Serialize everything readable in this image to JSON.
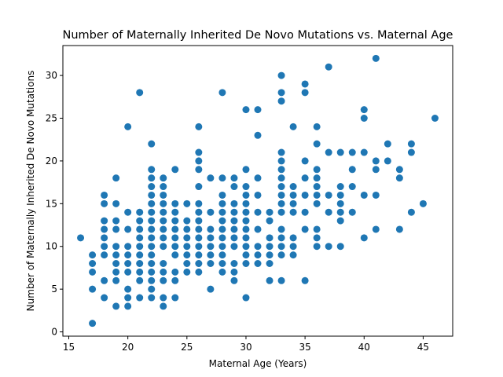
{
  "chart_data": {
    "type": "scatter",
    "title": "Number of Maternally Inherited De Novo Mutations vs. Maternal Age",
    "xlabel": "Maternal Age (Years)",
    "ylabel": "Number of Maternally Inherited De Novo Mutations",
    "xlim": [
      14.5,
      47.5
    ],
    "ylim": [
      -0.5,
      33.5
    ],
    "xticks": [
      15,
      20,
      25,
      30,
      35,
      40,
      45
    ],
    "yticks": [
      0,
      5,
      10,
      15,
      20,
      25,
      30
    ],
    "grid": false,
    "marker_color": "#1f77b4",
    "points": [
      [
        16,
        11
      ],
      [
        17,
        1
      ],
      [
        17,
        5
      ],
      [
        17,
        7
      ],
      [
        17,
        8
      ],
      [
        17,
        9
      ],
      [
        18,
        4
      ],
      [
        18,
        6
      ],
      [
        18,
        9
      ],
      [
        18,
        10
      ],
      [
        18,
        11
      ],
      [
        18,
        12
      ],
      [
        18,
        13
      ],
      [
        18,
        15
      ],
      [
        18,
        16
      ],
      [
        19,
        3
      ],
      [
        19,
        6
      ],
      [
        19,
        7
      ],
      [
        19,
        8
      ],
      [
        19,
        9
      ],
      [
        19,
        10
      ],
      [
        19,
        12
      ],
      [
        19,
        13
      ],
      [
        19,
        15
      ],
      [
        19,
        18
      ],
      [
        20,
        3
      ],
      [
        20,
        4
      ],
      [
        20,
        5
      ],
      [
        20,
        7
      ],
      [
        20,
        8
      ],
      [
        20,
        9
      ],
      [
        20,
        10
      ],
      [
        20,
        12
      ],
      [
        20,
        14
      ],
      [
        20,
        24
      ],
      [
        21,
        4
      ],
      [
        21,
        6
      ],
      [
        21,
        7
      ],
      [
        21,
        8
      ],
      [
        21,
        9
      ],
      [
        21,
        10
      ],
      [
        21,
        11
      ],
      [
        21,
        12
      ],
      [
        21,
        13
      ],
      [
        21,
        14
      ],
      [
        21,
        28
      ],
      [
        22,
        4
      ],
      [
        22,
        5
      ],
      [
        22,
        6
      ],
      [
        22,
        7
      ],
      [
        22,
        8
      ],
      [
        22,
        9
      ],
      [
        22,
        10
      ],
      [
        22,
        11
      ],
      [
        22,
        12
      ],
      [
        22,
        13
      ],
      [
        22,
        14
      ],
      [
        22,
        15
      ],
      [
        22,
        16
      ],
      [
        22,
        17
      ],
      [
        22,
        18
      ],
      [
        22,
        19
      ],
      [
        22,
        22
      ],
      [
        23,
        3
      ],
      [
        23,
        4
      ],
      [
        23,
        6
      ],
      [
        23,
        7
      ],
      [
        23,
        8
      ],
      [
        23,
        10
      ],
      [
        23,
        11
      ],
      [
        23,
        12
      ],
      [
        23,
        13
      ],
      [
        23,
        14
      ],
      [
        23,
        15
      ],
      [
        23,
        16
      ],
      [
        23,
        17
      ],
      [
        23,
        18
      ],
      [
        24,
        4
      ],
      [
        24,
        6
      ],
      [
        24,
        7
      ],
      [
        24,
        9
      ],
      [
        24,
        10
      ],
      [
        24,
        11
      ],
      [
        24,
        12
      ],
      [
        24,
        13
      ],
      [
        24,
        14
      ],
      [
        24,
        15
      ],
      [
        24,
        19
      ],
      [
        25,
        7
      ],
      [
        25,
        8
      ],
      [
        25,
        9
      ],
      [
        25,
        10
      ],
      [
        25,
        11
      ],
      [
        25,
        12
      ],
      [
        25,
        13
      ],
      [
        25,
        15
      ],
      [
        26,
        7
      ],
      [
        26,
        8
      ],
      [
        26,
        9
      ],
      [
        26,
        10
      ],
      [
        26,
        11
      ],
      [
        26,
        12
      ],
      [
        26,
        13
      ],
      [
        26,
        14
      ],
      [
        26,
        15
      ],
      [
        26,
        17
      ],
      [
        26,
        19
      ],
      [
        26,
        20
      ],
      [
        26,
        21
      ],
      [
        26,
        24
      ],
      [
        27,
        5
      ],
      [
        27,
        8
      ],
      [
        27,
        9
      ],
      [
        27,
        10
      ],
      [
        27,
        11
      ],
      [
        27,
        12
      ],
      [
        27,
        14
      ],
      [
        27,
        18
      ],
      [
        28,
        7
      ],
      [
        28,
        8
      ],
      [
        28,
        9
      ],
      [
        28,
        10
      ],
      [
        28,
        11
      ],
      [
        28,
        12
      ],
      [
        28,
        13
      ],
      [
        28,
        14
      ],
      [
        28,
        15
      ],
      [
        28,
        16
      ],
      [
        28,
        18
      ],
      [
        28,
        28
      ],
      [
        29,
        6
      ],
      [
        29,
        7
      ],
      [
        29,
        8
      ],
      [
        29,
        10
      ],
      [
        29,
        11
      ],
      [
        29,
        12
      ],
      [
        29,
        13
      ],
      [
        29,
        14
      ],
      [
        29,
        15
      ],
      [
        29,
        17
      ],
      [
        29,
        18
      ],
      [
        30,
        4
      ],
      [
        30,
        8
      ],
      [
        30,
        9
      ],
      [
        30,
        10
      ],
      [
        30,
        11
      ],
      [
        30,
        12
      ],
      [
        30,
        13
      ],
      [
        30,
        14
      ],
      [
        30,
        15
      ],
      [
        30,
        16
      ],
      [
        30,
        17
      ],
      [
        30,
        19
      ],
      [
        30,
        26
      ],
      [
        31,
        8
      ],
      [
        31,
        9
      ],
      [
        31,
        10
      ],
      [
        31,
        12
      ],
      [
        31,
        14
      ],
      [
        31,
        16
      ],
      [
        31,
        18
      ],
      [
        31,
        23
      ],
      [
        31,
        26
      ],
      [
        32,
        6
      ],
      [
        32,
        8
      ],
      [
        32,
        9
      ],
      [
        32,
        10
      ],
      [
        32,
        11
      ],
      [
        32,
        13
      ],
      [
        32,
        14
      ],
      [
        33,
        6
      ],
      [
        33,
        9
      ],
      [
        33,
        10
      ],
      [
        33,
        11
      ],
      [
        33,
        12
      ],
      [
        33,
        14
      ],
      [
        33,
        15
      ],
      [
        33,
        16
      ],
      [
        33,
        17
      ],
      [
        33,
        18
      ],
      [
        33,
        19
      ],
      [
        33,
        20
      ],
      [
        33,
        21
      ],
      [
        33,
        27
      ],
      [
        33,
        28
      ],
      [
        33,
        30
      ],
      [
        34,
        9
      ],
      [
        34,
        10
      ],
      [
        34,
        11
      ],
      [
        34,
        14
      ],
      [
        34,
        15
      ],
      [
        34,
        16
      ],
      [
        34,
        17
      ],
      [
        34,
        24
      ],
      [
        35,
        6
      ],
      [
        35,
        12
      ],
      [
        35,
        14
      ],
      [
        35,
        16
      ],
      [
        35,
        18
      ],
      [
        35,
        20
      ],
      [
        35,
        28
      ],
      [
        35,
        29
      ],
      [
        36,
        10
      ],
      [
        36,
        11
      ],
      [
        36,
        12
      ],
      [
        36,
        15
      ],
      [
        36,
        16
      ],
      [
        36,
        17
      ],
      [
        36,
        18
      ],
      [
        36,
        19
      ],
      [
        36,
        22
      ],
      [
        36,
        24
      ],
      [
        37,
        10
      ],
      [
        37,
        14
      ],
      [
        37,
        16
      ],
      [
        37,
        21
      ],
      [
        37,
        31
      ],
      [
        38,
        10
      ],
      [
        38,
        13
      ],
      [
        38,
        14
      ],
      [
        38,
        15
      ],
      [
        38,
        16
      ],
      [
        38,
        17
      ],
      [
        38,
        21
      ],
      [
        39,
        14
      ],
      [
        39,
        17
      ],
      [
        39,
        19
      ],
      [
        39,
        21
      ],
      [
        40,
        11
      ],
      [
        40,
        16
      ],
      [
        40,
        21
      ],
      [
        40,
        25
      ],
      [
        40,
        26
      ],
      [
        41,
        12
      ],
      [
        41,
        16
      ],
      [
        41,
        19
      ],
      [
        41,
        20
      ],
      [
        41,
        32
      ],
      [
        42,
        20
      ],
      [
        42,
        22
      ],
      [
        43,
        12
      ],
      [
        43,
        18
      ],
      [
        43,
        19
      ],
      [
        44,
        14
      ],
      [
        44,
        21
      ],
      [
        44,
        22
      ],
      [
        45,
        15
      ],
      [
        46,
        25
      ]
    ]
  }
}
